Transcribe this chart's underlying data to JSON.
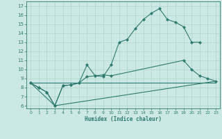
{
  "xlabel": "Humidex (Indice chaleur)",
  "background_color": "#cce8e5",
  "grid_color": "#afd4ce",
  "line_color": "#2d7a6e",
  "xlim": [
    -0.5,
    23.5
  ],
  "ylim": [
    5.7,
    17.5
  ],
  "yticks": [
    6,
    7,
    8,
    9,
    10,
    11,
    12,
    13,
    14,
    15,
    16,
    17
  ],
  "xticks": [
    0,
    1,
    2,
    3,
    4,
    5,
    6,
    7,
    8,
    9,
    10,
    11,
    12,
    13,
    14,
    15,
    16,
    17,
    18,
    19,
    20,
    21,
    22,
    23
  ],
  "series1_x": [
    0,
    1,
    2,
    3,
    4,
    5,
    6,
    7,
    8,
    9,
    10,
    11,
    12,
    13,
    14,
    15,
    16,
    17,
    18,
    19,
    20,
    21
  ],
  "series1_y": [
    8.5,
    8.0,
    7.5,
    6.0,
    8.2,
    8.3,
    8.5,
    10.5,
    9.3,
    9.2,
    10.5,
    13.0,
    13.3,
    14.5,
    15.5,
    16.2,
    16.7,
    15.5,
    15.2,
    14.7,
    13.0,
    13.0
  ],
  "series2_x": [
    0,
    1,
    2,
    3,
    4,
    5,
    6,
    7,
    8,
    9,
    10,
    19,
    20,
    21,
    22,
    23
  ],
  "series2_y": [
    8.5,
    8.0,
    7.5,
    6.0,
    8.2,
    8.3,
    8.5,
    9.2,
    9.3,
    9.4,
    9.3,
    11.0,
    10.0,
    9.3,
    9.0,
    8.7
  ],
  "series3_x": [
    0,
    3,
    23
  ],
  "series3_y": [
    8.5,
    6.0,
    8.7
  ],
  "series4_x": [
    0,
    23
  ],
  "series4_y": [
    8.5,
    8.5
  ]
}
